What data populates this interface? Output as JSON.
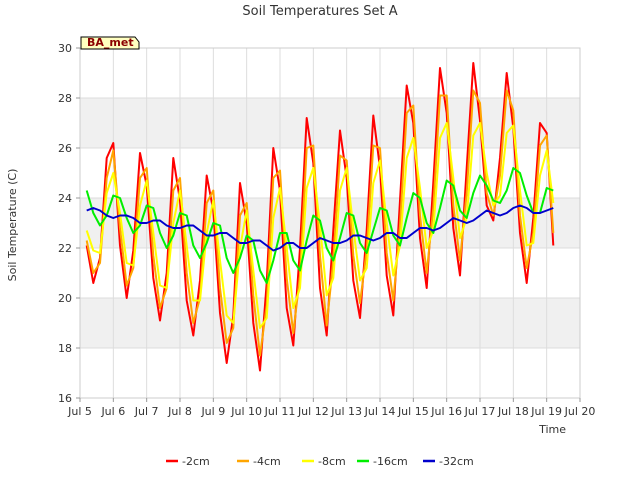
{
  "chart_data": {
    "type": "line",
    "title": "Soil Temperatures Set A",
    "xlabel": "Time",
    "ylabel": "Soil Temperature (C)",
    "badge": "BA_met",
    "xlim": [
      5,
      20
    ],
    "ylim": [
      16,
      30
    ],
    "x_ticks": [
      {
        "v": 5,
        "label": "Jul 5"
      },
      {
        "v": 6,
        "label": "Jul 6"
      },
      {
        "v": 7,
        "label": "Jul 7"
      },
      {
        "v": 8,
        "label": "Jul 8"
      },
      {
        "v": 9,
        "label": "Jul 9"
      },
      {
        "v": 10,
        "label": "Jul 10"
      },
      {
        "v": 11,
        "label": "Jul 11"
      },
      {
        "v": 12,
        "label": "Jul 12"
      },
      {
        "v": 13,
        "label": "Jul 13"
      },
      {
        "v": 14,
        "label": "Jul 14"
      },
      {
        "v": 15,
        "label": "Jul 15"
      },
      {
        "v": 16,
        "label": "Jul 16"
      },
      {
        "v": 17,
        "label": "Jul 17"
      },
      {
        "v": 18,
        "label": "Jul 18"
      },
      {
        "v": 19,
        "label": "Jul 19"
      },
      {
        "v": 20,
        "label": "Jul 20"
      }
    ],
    "y_ticks": [
      16,
      18,
      20,
      22,
      24,
      26,
      28,
      30
    ],
    "shaded_bands": [
      [
        18,
        20
      ],
      [
        22,
        24
      ],
      [
        26,
        28
      ]
    ],
    "grid": true,
    "legend_position": "bottom",
    "x": [
      5.2,
      5.4,
      5.6,
      5.8,
      6.0,
      6.2,
      6.4,
      6.6,
      6.8,
      7.0,
      7.2,
      7.4,
      7.6,
      7.8,
      8.0,
      8.2,
      8.4,
      8.6,
      8.8,
      9.0,
      9.2,
      9.4,
      9.6,
      9.8,
      10.0,
      10.2,
      10.4,
      10.6,
      10.8,
      11.0,
      11.2,
      11.4,
      11.6,
      11.8,
      12.0,
      12.2,
      12.4,
      12.6,
      12.8,
      13.0,
      13.2,
      13.4,
      13.6,
      13.8,
      14.0,
      14.2,
      14.4,
      14.6,
      14.8,
      15.0,
      15.2,
      15.4,
      15.6,
      15.8,
      16.0,
      16.2,
      16.4,
      16.6,
      16.8,
      17.0,
      17.2,
      17.4,
      17.6,
      17.8,
      18.0,
      18.2,
      18.4,
      18.6,
      18.8,
      19.0,
      19.2
    ],
    "series": [
      {
        "name": "-2cm",
        "color": "#ff0000",
        "values": [
          22.1,
          20.6,
          21.6,
          25.6,
          26.2,
          22.1,
          20.0,
          21.9,
          25.8,
          24.5,
          20.8,
          19.1,
          21.0,
          25.6,
          23.9,
          19.9,
          18.5,
          20.7,
          24.9,
          23.5,
          19.4,
          17.4,
          19.3,
          24.6,
          23.0,
          19.0,
          17.1,
          20.6,
          26.0,
          24.3,
          19.6,
          18.1,
          22.0,
          27.2,
          25.4,
          20.4,
          18.5,
          22.7,
          26.7,
          24.8,
          20.7,
          19.2,
          22.7,
          27.3,
          25.2,
          20.9,
          19.3,
          23.9,
          28.5,
          27.0,
          22.4,
          20.4,
          24.6,
          29.2,
          27.4,
          22.8,
          20.9,
          25.2,
          29.4,
          27.1,
          23.7,
          23.1,
          25.6,
          29.0,
          26.8,
          22.6,
          20.6,
          23.2,
          27.0,
          26.6,
          22.1
        ]
      },
      {
        "name": "-4cm",
        "color": "#ffa500",
        "values": [
          22.3,
          21.0,
          21.4,
          24.8,
          25.9,
          22.8,
          20.5,
          21.2,
          24.8,
          25.2,
          21.7,
          19.6,
          20.4,
          24.3,
          24.8,
          21.0,
          19.0,
          20.0,
          23.8,
          24.3,
          20.4,
          18.2,
          18.8,
          23.3,
          23.8,
          20.1,
          17.7,
          19.7,
          24.8,
          25.1,
          20.8,
          18.6,
          20.9,
          26.0,
          26.1,
          21.7,
          18.9,
          21.5,
          25.7,
          25.5,
          21.7,
          19.8,
          21.9,
          26.1,
          26.0,
          21.8,
          19.9,
          22.9,
          27.4,
          27.7,
          23.3,
          21.0,
          23.6,
          28.1,
          28.1,
          23.7,
          21.5,
          24.2,
          28.3,
          27.8,
          24.2,
          23.3,
          24.9,
          28.3,
          27.5,
          23.3,
          21.2,
          22.6,
          26.1,
          26.5,
          22.6
        ]
      },
      {
        "name": "-8cm",
        "color": "#ffff00",
        "values": [
          22.7,
          21.9,
          21.8,
          24.2,
          25.0,
          23.4,
          21.4,
          21.3,
          23.7,
          24.7,
          22.6,
          20.5,
          20.4,
          23.0,
          24.3,
          22.1,
          19.9,
          19.9,
          22.6,
          23.9,
          21.5,
          19.3,
          19.0,
          22.0,
          23.5,
          21.1,
          18.8,
          19.2,
          23.2,
          24.4,
          22.0,
          19.6,
          20.4,
          24.4,
          25.2,
          22.9,
          20.1,
          20.8,
          24.3,
          25.2,
          22.8,
          20.7,
          21.2,
          24.6,
          25.5,
          23.0,
          20.9,
          22.1,
          25.6,
          26.4,
          24.4,
          22.0,
          22.7,
          26.4,
          27.0,
          24.8,
          22.4,
          23.2,
          26.5,
          27.0,
          25.0,
          23.7,
          24.1,
          26.6,
          26.9,
          24.3,
          22.1,
          22.2,
          24.9,
          25.9,
          23.8
        ]
      },
      {
        "name": "-16cm",
        "color": "#00ee00",
        "values": [
          24.3,
          23.4,
          22.9,
          23.3,
          24.1,
          24.0,
          23.2,
          22.6,
          22.9,
          23.7,
          23.6,
          22.6,
          22.0,
          22.5,
          23.4,
          23.3,
          22.1,
          21.6,
          22.2,
          23.0,
          22.9,
          21.6,
          21.0,
          21.6,
          22.5,
          22.3,
          21.1,
          20.6,
          21.5,
          22.6,
          22.6,
          21.5,
          21.1,
          22.3,
          23.3,
          23.1,
          22.0,
          21.5,
          22.4,
          23.4,
          23.3,
          22.2,
          21.8,
          22.7,
          23.6,
          23.5,
          22.5,
          22.1,
          23.2,
          24.2,
          24.0,
          23.0,
          22.6,
          23.6,
          24.7,
          24.5,
          23.5,
          23.2,
          24.2,
          24.9,
          24.5,
          23.9,
          23.8,
          24.3,
          25.2,
          25.0,
          24.1,
          23.4,
          23.4,
          24.4,
          24.3
        ]
      },
      {
        "name": "-32cm",
        "color": "#0000cc",
        "values": [
          23.5,
          23.6,
          23.5,
          23.3,
          23.2,
          23.3,
          23.3,
          23.2,
          23.0,
          23.0,
          23.1,
          23.1,
          22.9,
          22.8,
          22.8,
          22.9,
          22.9,
          22.7,
          22.5,
          22.5,
          22.6,
          22.6,
          22.4,
          22.2,
          22.2,
          22.3,
          22.3,
          22.1,
          21.9,
          22.0,
          22.2,
          22.2,
          22.0,
          22.0,
          22.2,
          22.4,
          22.3,
          22.2,
          22.2,
          22.3,
          22.5,
          22.5,
          22.4,
          22.3,
          22.4,
          22.6,
          22.6,
          22.4,
          22.4,
          22.6,
          22.8,
          22.8,
          22.7,
          22.8,
          23.0,
          23.2,
          23.1,
          23.0,
          23.1,
          23.3,
          23.5,
          23.4,
          23.3,
          23.4,
          23.6,
          23.7,
          23.6,
          23.4,
          23.4,
          23.5,
          23.6
        ]
      }
    ]
  }
}
